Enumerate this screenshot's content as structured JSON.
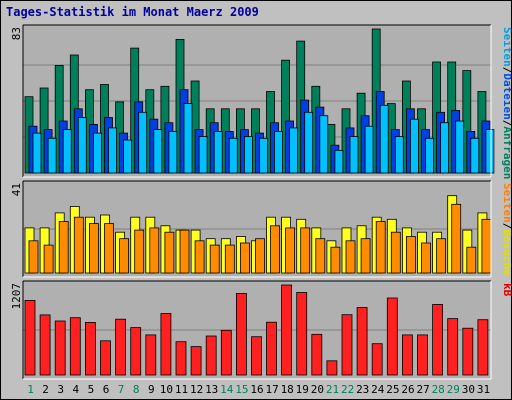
{
  "chart_data": {
    "type": "bar",
    "title": "Tages-Statistik im Monat Maerz 2009",
    "days": [
      "1",
      "2",
      "3",
      "4",
      "5",
      "6",
      "7",
      "8",
      "9",
      "10",
      "11",
      "12",
      "13",
      "14",
      "15",
      "16",
      "17",
      "18",
      "19",
      "20",
      "21",
      "22",
      "23",
      "24",
      "25",
      "26",
      "27",
      "28",
      "29",
      "30",
      "31"
    ],
    "weekend_days": [
      "1",
      "7",
      "8",
      "14",
      "15",
      "21",
      "22",
      "28",
      "29"
    ],
    "panels": [
      {
        "id": "hits",
        "ymax_label": "83",
        "ymax": 83,
        "labels": [
          "Seiten",
          "/",
          "Dateien",
          "/",
          "Anfragen"
        ],
        "label_colors": [
          "#00a0e0",
          "#000000",
          "#0050e0",
          "#000000",
          "#008060"
        ],
        "series": [
          {
            "name": "Anfragen",
            "color": "#00805a",
            "values": [
              44,
              49,
              62,
              68,
              48,
              51,
              41,
              72,
              48,
              50,
              77,
              53,
              37,
              37,
              37,
              37,
              47,
              65,
              76,
              50,
              28,
              37,
              46,
              83,
              40,
              53,
              37,
              64,
              64,
              59,
              47
            ]
          },
          {
            "name": "Dateien",
            "color": "#0040e0",
            "values": [
              27,
              25,
              30,
              37,
              28,
              32,
              23,
              41,
              31,
              29,
              48,
              25,
              29,
              24,
              25,
              23,
              29,
              30,
              42,
              38,
              16,
              26,
              33,
              47,
              25,
              37,
              25,
              35,
              36,
              24,
              30
            ]
          },
          {
            "name": "Seiten",
            "color": "#00c0ff",
            "values": [
              23,
              20,
              25,
              32,
              23,
              26,
              19,
              35,
              25,
              24,
              40,
              21,
              24,
              20,
              21,
              20,
              24,
              26,
              35,
              33,
              13,
              21,
              27,
              39,
              21,
              31,
              20,
              29,
              30,
              20,
              25
            ]
          }
        ]
      },
      {
        "id": "visits",
        "ymax_label": "41",
        "ymax": 41,
        "labels": [
          "Seiten",
          "/",
          "Besuche"
        ],
        "label_colors": [
          "#ff8000",
          "#000000",
          "#e0e000"
        ],
        "series": [
          {
            "name": "Besuche",
            "color": "#ffff20",
            "values": [
              21,
              21,
              28,
              31,
              26,
              27,
              19,
              26,
              26,
              22,
              20,
              20,
              16,
              16,
              17,
              15,
              26,
              26,
              25,
              21,
              15,
              21,
              22,
              26,
              25,
              21,
              19,
              19,
              36,
              20,
              28
            ]
          },
          {
            "name": "Seiten",
            "color": "#ff8c00",
            "values": [
              15,
              13,
              24,
              26,
              23,
              23,
              16,
              20,
              21,
              19,
              20,
              15,
              13,
              13,
              14,
              16,
              22,
              21,
              21,
              16,
              12,
              15,
              16,
              24,
              19,
              17,
              14,
              16,
              32,
              12,
              25
            ]
          }
        ]
      },
      {
        "id": "kb",
        "ymax_label": "1207",
        "ymax": 1207,
        "labels": [
          "kB"
        ],
        "label_colors": [
          "#e00000"
        ],
        "series": [
          {
            "name": "kB",
            "color": "#ff2020",
            "values": [
              1000,
              806,
              724,
              768,
              706,
              459,
              749,
              636,
              538,
              825,
              447,
              381,
              523,
              599,
              1095,
              514,
              708,
              1207,
              1107,
              546,
              190,
              809,
              905,
              420,
              1032,
              538,
              538,
              947,
              757,
              627,
              742
            ]
          }
        ]
      }
    ]
  },
  "colors": {
    "background": "#c0c0c0",
    "plot_bg": "#b0b0b0",
    "gridline": "#808080",
    "frame_dark": "#000000",
    "frame_light": "#ffffff",
    "weekday_label": "#000000",
    "weekend_label": "#00805a",
    "title": "#0000a0"
  }
}
